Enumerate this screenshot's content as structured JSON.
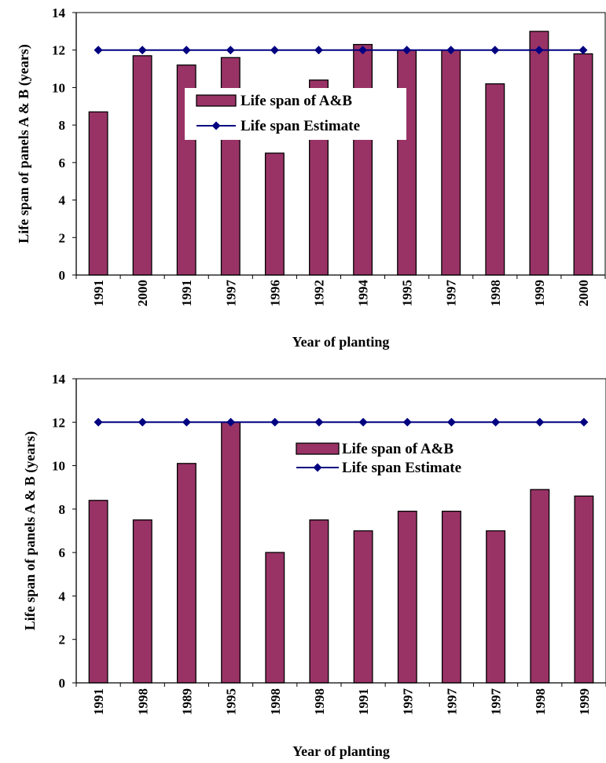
{
  "chart_data": [
    {
      "type": "bar",
      "categories": [
        "1991",
        "2000",
        "1991",
        "1997",
        "1996",
        "1992",
        "1994",
        "1995",
        "1997",
        "1998",
        "1999",
        "2000"
      ],
      "series": [
        {
          "name": "Life span of A&B",
          "type": "bar",
          "color": "#993366",
          "values": [
            8.7,
            11.7,
            11.2,
            11.6,
            6.5,
            10.4,
            12.3,
            12.0,
            12.0,
            10.2,
            13.0,
            11.8
          ]
        },
        {
          "name": "Life span Estimate",
          "type": "line",
          "color": "#000080",
          "marker": "diamond",
          "values": [
            12,
            12,
            12,
            12,
            12,
            12,
            12,
            12,
            12,
            12,
            12,
            12
          ]
        }
      ],
      "xlabel": "Year of planting",
      "ylabel": "Life span of panels A & B (years)",
      "ylim": [
        0,
        14
      ],
      "yticks": [
        "0",
        "2",
        "4",
        "6",
        "8",
        "10",
        "12",
        "14"
      ],
      "legend": "center",
      "grid": false
    },
    {
      "type": "bar",
      "categories": [
        "1991",
        "1998",
        "1989",
        "1995",
        "1998",
        "1998",
        "1991",
        "1997",
        "1997",
        "1997",
        "1998",
        "1999"
      ],
      "series": [
        {
          "name": "Life span of A&B",
          "type": "bar",
          "color": "#993366",
          "values": [
            8.4,
            7.5,
            10.1,
            12.0,
            6.0,
            7.5,
            7.0,
            7.9,
            7.9,
            7.0,
            8.9,
            8.6
          ]
        },
        {
          "name": "Life span Estimate",
          "type": "line",
          "color": "#000080",
          "marker": "diamond",
          "values": [
            12,
            12,
            12,
            12,
            12,
            12,
            12,
            12,
            12,
            12,
            12,
            12
          ]
        }
      ],
      "xlabel": "Year of planting",
      "ylabel": "Life span of panels A & B (years)",
      "ylim": [
        0,
        14
      ],
      "yticks": [
        "0",
        "2",
        "4",
        "6",
        "8",
        "10",
        "12",
        "14"
      ],
      "legend": "center-right",
      "grid": false
    }
  ]
}
